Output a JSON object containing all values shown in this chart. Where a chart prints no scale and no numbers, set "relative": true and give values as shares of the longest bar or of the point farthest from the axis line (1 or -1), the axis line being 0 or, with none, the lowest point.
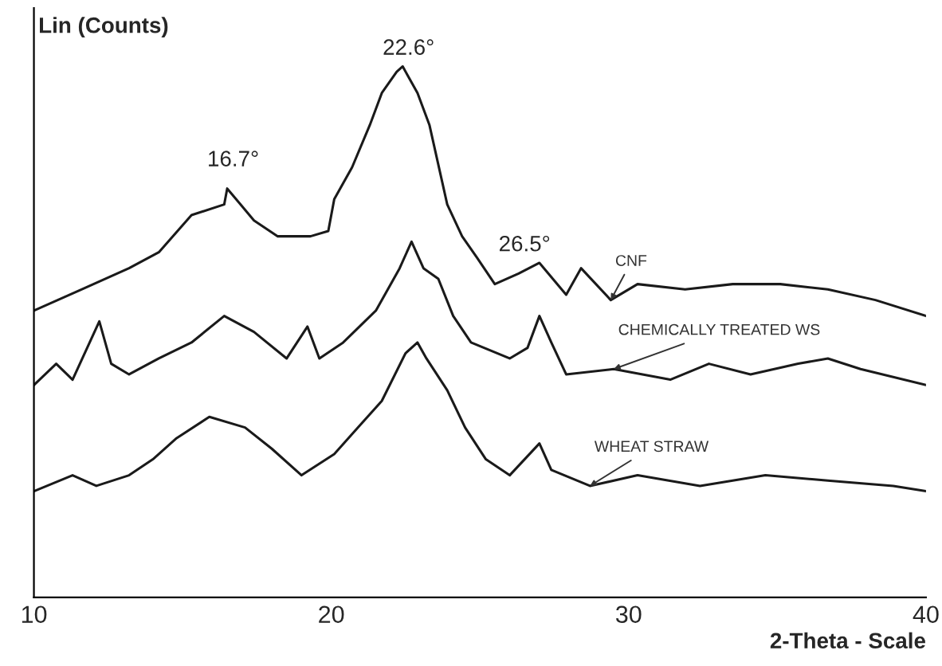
{
  "chart_data": {
    "type": "line",
    "relative": true,
    "xlabel": "2-Theta - Scale",
    "ylabel": "Lin (Counts)",
    "xlim": [
      10,
      40
    ],
    "xticks": [
      10,
      20,
      30,
      40
    ],
    "grid": false,
    "legend": false,
    "marker": "none",
    "line_style": "solid",
    "annotations": [
      {
        "text": "16.7°",
        "x": 16.7,
        "y": 0.77
      },
      {
        "text": "22.6°",
        "x": 22.6,
        "y": 0.98
      },
      {
        "text": "26.5°",
        "x": 26.5,
        "y": 0.61
      }
    ],
    "series": [
      {
        "name": "CNF",
        "color": "#1a1a1a",
        "x": [
          10,
          11.6,
          13.2,
          14.2,
          15.3,
          16.4,
          16.5,
          17.4,
          18.2,
          19.3,
          19.9,
          20.1,
          20.7,
          21.3,
          21.7,
          22.2,
          22.4,
          22.6,
          22.9,
          23.3,
          23.9,
          24.4,
          24.9,
          25.5,
          26.3,
          27.0,
          27.9,
          28.4,
          29.4,
          30.3,
          31.9,
          33.5,
          35.1,
          36.7,
          38.3,
          40
        ],
        "values": [
          0.54,
          0.58,
          0.62,
          0.65,
          0.72,
          0.74,
          0.77,
          0.71,
          0.68,
          0.68,
          0.69,
          0.75,
          0.81,
          0.89,
          0.95,
          0.99,
          1.0,
          0.98,
          0.95,
          0.89,
          0.74,
          0.68,
          0.64,
          0.59,
          0.61,
          0.63,
          0.57,
          0.62,
          0.56,
          0.59,
          0.58,
          0.59,
          0.59,
          0.58,
          0.56,
          0.53
        ]
      },
      {
        "name": "CHEMICALLY TREATED WS",
        "color": "#1a1a1a",
        "x": [
          10,
          10.75,
          11.3,
          12.2,
          12.6,
          13.2,
          14.2,
          15.3,
          16.4,
          17.4,
          18.5,
          19.2,
          19.6,
          20.4,
          21.5,
          22.3,
          22.7,
          23.1,
          23.6,
          24.1,
          24.7,
          26.0,
          26.6,
          27.0,
          27.4,
          27.9,
          29.5,
          31.4,
          32.7,
          34.1,
          35.7,
          36.7,
          37.8,
          40
        ],
        "values": [
          0.4,
          0.44,
          0.41,
          0.52,
          0.44,
          0.42,
          0.45,
          0.48,
          0.53,
          0.5,
          0.45,
          0.51,
          0.45,
          0.48,
          0.54,
          0.62,
          0.67,
          0.62,
          0.6,
          0.53,
          0.48,
          0.45,
          0.47,
          0.53,
          0.48,
          0.42,
          0.43,
          0.41,
          0.44,
          0.42,
          0.44,
          0.45,
          0.43,
          0.4
        ]
      },
      {
        "name": "WHEAT STRAW",
        "color": "#1a1a1a",
        "x": [
          10,
          11.3,
          12.1,
          13.2,
          14.0,
          14.8,
          15.9,
          17.1,
          18.0,
          19.0,
          20.1,
          20.9,
          21.7,
          22.5,
          22.9,
          23.2,
          23.9,
          24.5,
          25.2,
          26.0,
          27.0,
          27.4,
          28.7,
          30.3,
          32.4,
          34.6,
          36.7,
          38.9,
          40
        ],
        "values": [
          0.2,
          0.23,
          0.21,
          0.23,
          0.26,
          0.3,
          0.34,
          0.32,
          0.28,
          0.23,
          0.27,
          0.32,
          0.37,
          0.46,
          0.48,
          0.45,
          0.39,
          0.32,
          0.26,
          0.23,
          0.29,
          0.24,
          0.21,
          0.23,
          0.21,
          0.23,
          0.22,
          0.21,
          0.2
        ]
      }
    ]
  }
}
